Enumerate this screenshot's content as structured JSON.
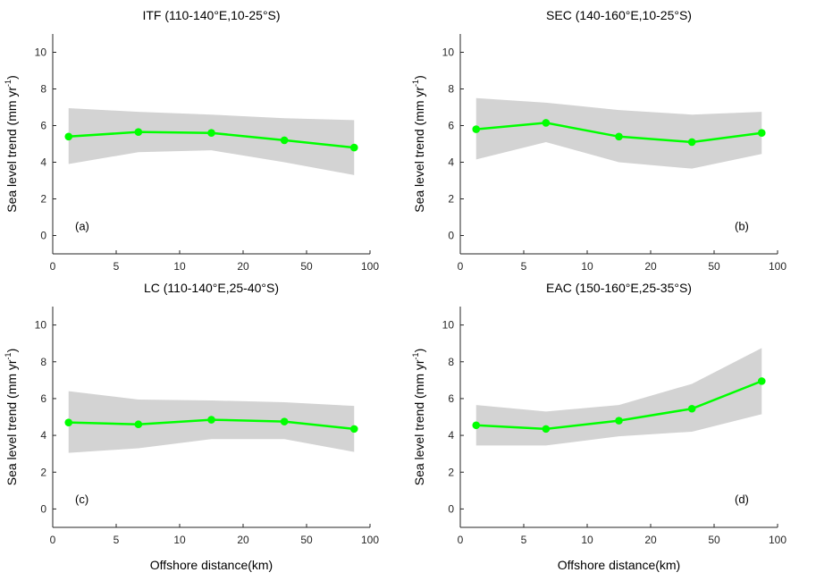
{
  "chart_data": [
    {
      "type": "line",
      "panel": "a",
      "title": "ITF (110-140°E,10-25°S)",
      "letter": "(a)",
      "xlabel": "",
      "ylabel": "Sea level trend (mm yr",
      "ylabel_sup": "-1",
      "ylabel_close": ")",
      "x_ticks": [
        "0",
        "5",
        "10",
        "20",
        "50",
        "100"
      ],
      "y_ticks": [
        "0",
        "2",
        "4",
        "6",
        "8",
        "10"
      ],
      "ylim": [
        -1,
        11
      ],
      "x_pos": [
        0.05,
        0.27,
        0.5,
        0.73,
        0.95
      ],
      "series": [
        {
          "values": [
            5.4,
            5.65,
            5.6,
            5.2,
            4.8
          ],
          "upper": [
            6.95,
            6.75,
            6.6,
            6.4,
            6.3
          ],
          "lower": [
            3.9,
            4.55,
            4.65,
            4.0,
            3.3
          ]
        }
      ],
      "colors": {
        "line": "#00ff00",
        "band": "#d3d3d3"
      }
    },
    {
      "type": "line",
      "panel": "b",
      "title": "SEC (140-160°E,10-25°S)",
      "letter": "(b)",
      "xlabel": "",
      "ylabel": "Sea level trend (mm yr",
      "ylabel_sup": "-1",
      "ylabel_close": ")",
      "x_ticks": [
        "0",
        "5",
        "10",
        "20",
        "50",
        "100"
      ],
      "y_ticks": [
        "0",
        "2",
        "4",
        "6",
        "8",
        "10"
      ],
      "ylim": [
        -1,
        11
      ],
      "x_pos": [
        0.05,
        0.27,
        0.5,
        0.73,
        0.95
      ],
      "series": [
        {
          "values": [
            5.8,
            6.15,
            5.4,
            5.1,
            5.6
          ],
          "upper": [
            7.5,
            7.25,
            6.85,
            6.6,
            6.75
          ],
          "lower": [
            4.15,
            5.1,
            4.0,
            3.65,
            4.45
          ]
        }
      ],
      "colors": {
        "line": "#00ff00",
        "band": "#d3d3d3"
      }
    },
    {
      "type": "line",
      "panel": "c",
      "title": "LC (110-140°E,25-40°S)",
      "letter": "(c)",
      "xlabel": "Offshore distance(km)",
      "ylabel": "Sea level trend (mm yr",
      "ylabel_sup": "-1",
      "ylabel_close": ")",
      "x_ticks": [
        "0",
        "5",
        "10",
        "20",
        "50",
        "100"
      ],
      "y_ticks": [
        "0",
        "2",
        "4",
        "6",
        "8",
        "10"
      ],
      "ylim": [
        -1,
        11
      ],
      "x_pos": [
        0.05,
        0.27,
        0.5,
        0.73,
        0.95
      ],
      "series": [
        {
          "values": [
            4.7,
            4.6,
            4.85,
            4.75,
            4.35
          ],
          "upper": [
            6.4,
            5.95,
            5.9,
            5.8,
            5.6
          ],
          "lower": [
            3.05,
            3.3,
            3.8,
            3.8,
            3.1
          ]
        }
      ],
      "colors": {
        "line": "#00ff00",
        "band": "#d3d3d3"
      }
    },
    {
      "type": "line",
      "panel": "d",
      "title": "EAC (150-160°E,25-35°S)",
      "letter": "(d)",
      "xlabel": "Offshore distance(km)",
      "ylabel": "Sea level trend (mm yr",
      "ylabel_sup": "-1",
      "ylabel_close": ")",
      "x_ticks": [
        "0",
        "5",
        "10",
        "20",
        "50",
        "100"
      ],
      "y_ticks": [
        "0",
        "2",
        "4",
        "6",
        "8",
        "10"
      ],
      "ylim": [
        -1,
        11
      ],
      "x_pos": [
        0.05,
        0.27,
        0.5,
        0.73,
        0.95
      ],
      "series": [
        {
          "values": [
            4.55,
            4.35,
            4.8,
            5.45,
            6.95
          ],
          "upper": [
            5.65,
            5.3,
            5.65,
            6.8,
            8.75
          ],
          "lower": [
            3.45,
            3.45,
            3.95,
            4.2,
            5.15
          ]
        }
      ],
      "colors": {
        "line": "#00ff00",
        "band": "#d3d3d3"
      }
    }
  ]
}
